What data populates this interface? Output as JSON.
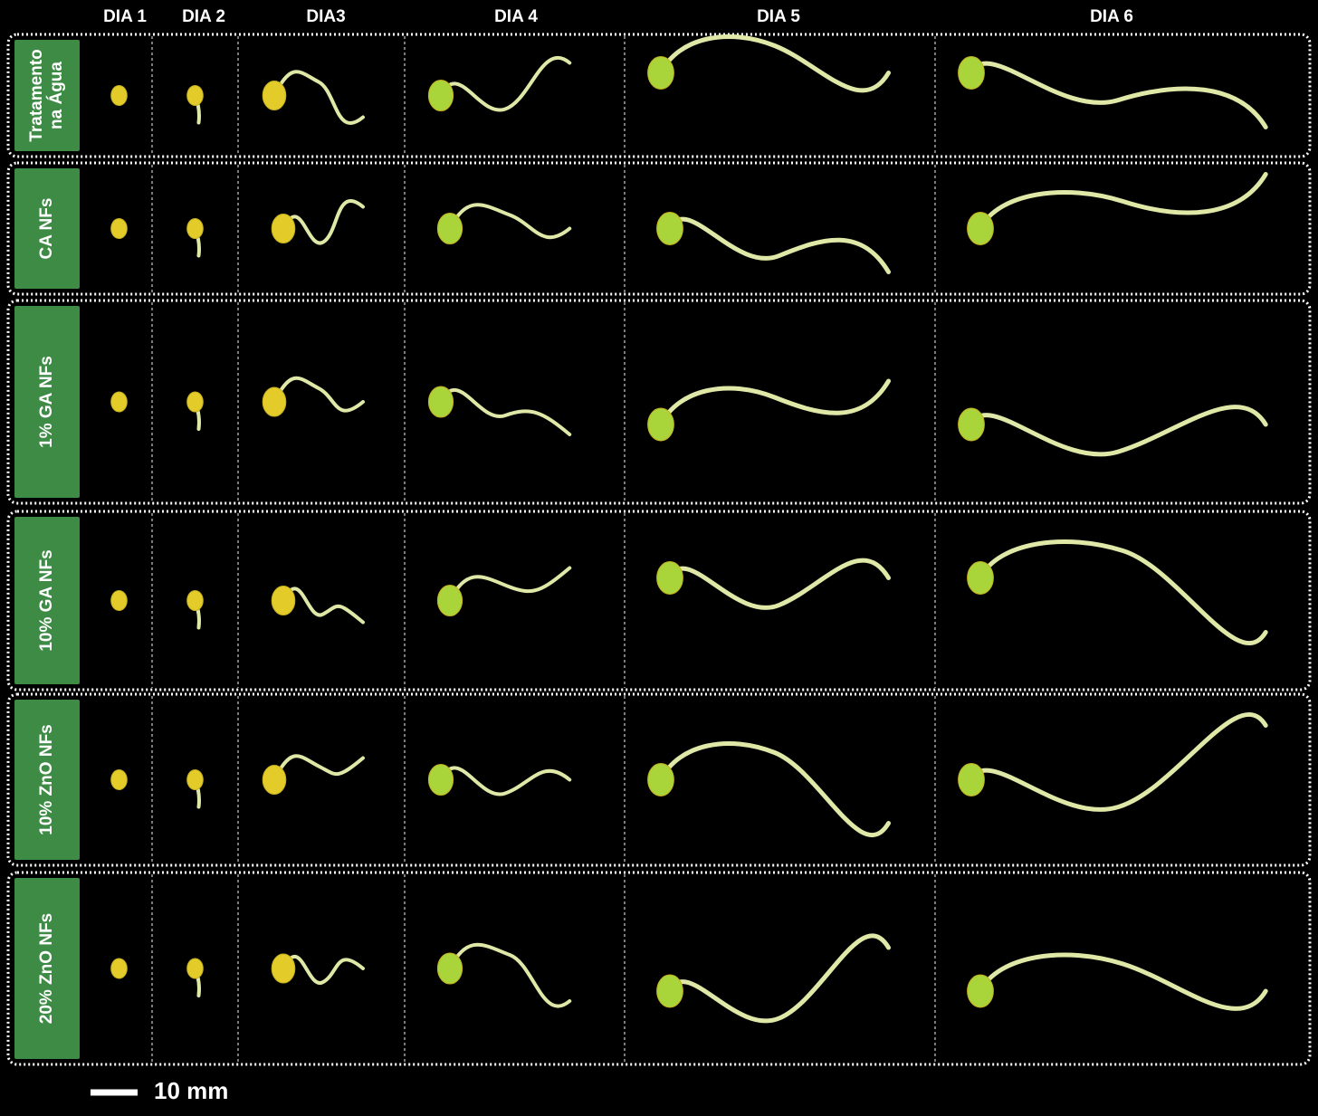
{
  "columns": [
    "DIA 1",
    "DIA 2",
    "DIA3",
    "DIA 4",
    "DIA 5",
    "DIA 6"
  ],
  "rows": [
    {
      "label": [
        "Tratamento",
        "na Água"
      ]
    },
    {
      "label": [
        "CA NFs"
      ]
    },
    {
      "label": [
        "1% GA NFs"
      ]
    },
    {
      "label": [
        "10% GA NFs"
      ]
    },
    {
      "label": [
        "10% ZnO NFs"
      ]
    },
    {
      "label": [
        "20% ZnO NFs"
      ]
    }
  ],
  "scale_bar": "10 mm"
}
